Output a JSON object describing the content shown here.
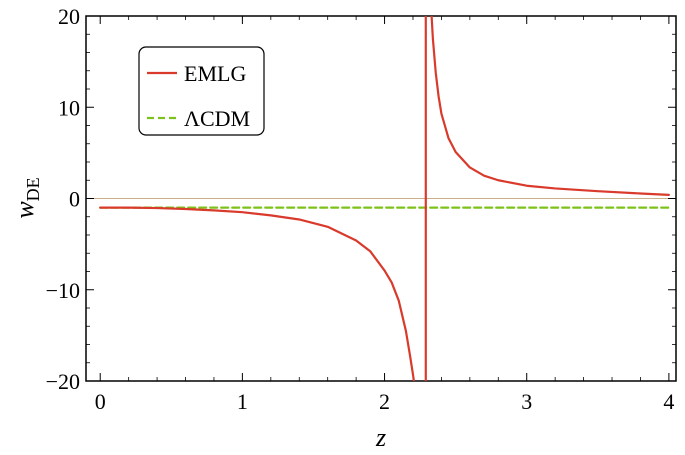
{
  "chart_data": {
    "type": "line",
    "title": "",
    "xlabel": "z",
    "ylabel_main": "w",
    "ylabel_sub": "DE",
    "xlim": [
      -0.1,
      4.05
    ],
    "ylim": [
      -20,
      20
    ],
    "xticks": [
      0,
      1,
      2,
      3,
      4
    ],
    "xtick_labels": [
      "0",
      "1",
      "2",
      "3",
      "4"
    ],
    "yticks": [
      -20,
      -10,
      0,
      10,
      20
    ],
    "ytick_labels": [
      "−20",
      "−10",
      "0",
      "10",
      "20"
    ],
    "zero_line": true,
    "grid": false,
    "legend_position": "top-left",
    "series": [
      {
        "name": "EMLG",
        "color": "#d93a2b",
        "dash": "solid",
        "pole": 2.29,
        "segments": [
          {
            "x": [
              0,
              0.2,
              0.4,
              0.6,
              0.8,
              1.0,
              1.2,
              1.4,
              1.6,
              1.8,
              1.9,
              2.0,
              2.05,
              2.1,
              2.15,
              2.18,
              2.2,
              2.22,
              2.24
            ],
            "y": [
              -1.0,
              -1.0,
              -1.05,
              -1.15,
              -1.3,
              -1.5,
              -1.85,
              -2.3,
              -3.1,
              -4.6,
              -5.8,
              -7.9,
              -9.2,
              -11.2,
              -14.5,
              -17.3,
              -19.3,
              -21.5,
              -24.0
            ]
          },
          {
            "x": [
              2.29,
              2.29
            ],
            "y": [
              -25,
              25
            ]
          },
          {
            "x": [
              2.32,
              2.34,
              2.36,
              2.38,
              2.4,
              2.45,
              2.5,
              2.6,
              2.7,
              2.8,
              3.0,
              3.2,
              3.5,
              3.8,
              4.0
            ],
            "y": [
              23.0,
              17.5,
              13.8,
              11.2,
              9.3,
              6.6,
              5.1,
              3.4,
              2.5,
              2.0,
              1.4,
              1.1,
              0.8,
              0.55,
              0.4
            ]
          }
        ]
      },
      {
        "name": "ΛCDM",
        "color": "#7cc21a",
        "dash": "dashed",
        "segments": [
          {
            "x": [
              0,
              4
            ],
            "y": [
              -1,
              -1
            ]
          }
        ]
      }
    ]
  }
}
